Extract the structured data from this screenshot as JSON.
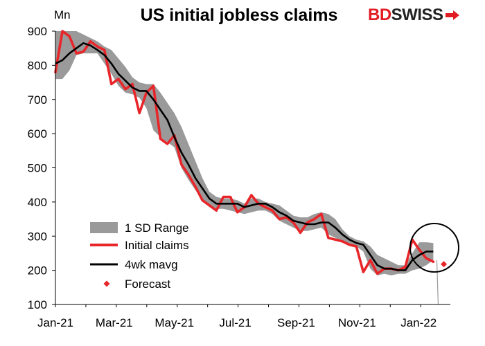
{
  "title": "US initial jobless claims",
  "y_unit": "Mn",
  "logo": {
    "part1": "BD",
    "part2": "SWISS"
  },
  "colors": {
    "range": "#9a9a9a",
    "claims": "#e8262a",
    "mavg": "#000000",
    "forecast": "#e8262a",
    "accent": "#e31b23"
  },
  "chart_data": {
    "type": "line",
    "title": "US initial jobless claims",
    "ylabel": "Mn",
    "xlabel": "",
    "ylim": [
      100,
      900
    ],
    "yticks": [
      100,
      200,
      300,
      400,
      500,
      600,
      700,
      800,
      900
    ],
    "xtick_labels": [
      "Jan-21",
      "Mar-21",
      "May-21",
      "Jul-21",
      "Sep-21",
      "Nov-21",
      "Jan-22"
    ],
    "xtick_weeks": [
      0,
      8.4,
      17,
      25.7,
      34.4,
      43.1,
      51.9
    ],
    "legend": [
      "1 SD Range",
      "Initial claims",
      "4wk mavg",
      "Forecast"
    ],
    "grid": false,
    "series": [
      {
        "name": "Initial claims",
        "values": [
          780,
          900,
          885,
          835,
          840,
          870,
          855,
          845,
          745,
          760,
          730,
          745,
          660,
          720,
          740,
          585,
          570,
          595,
          510,
          480,
          445,
          405,
          390,
          375,
          415,
          415,
          370,
          385,
          420,
          395,
          385,
          375,
          350,
          355,
          340,
          310,
          340,
          350,
          365,
          295,
          290,
          285,
          275,
          270,
          195,
          230,
          190,
          205,
          205,
          200,
          210,
          290,
          260,
          235,
          225
        ]
      },
      {
        "name": "4wk mavg",
        "values": [
          805,
          815,
          835,
          850,
          865,
          858,
          845,
          830,
          805,
          775,
          755,
          735,
          725,
          725,
          700,
          670,
          640,
          590,
          545,
          510,
          470,
          440,
          410,
          395,
          395,
          395,
          395,
          385,
          390,
          395,
          395,
          385,
          370,
          360,
          345,
          340,
          335,
          335,
          340,
          340,
          325,
          305,
          290,
          280,
          275,
          245,
          215,
          205,
          205,
          200,
          200,
          230,
          245,
          255,
          255
        ]
      },
      {
        "name": "1 SD Range",
        "upper": [
          900,
          900,
          900,
          900,
          890,
          880,
          870,
          855,
          845,
          820,
          795,
          765,
          750,
          745,
          745,
          720,
          690,
          660,
          620,
          570,
          520,
          470,
          430,
          415,
          410,
          410,
          405,
          395,
          410,
          410,
          400,
          395,
          390,
          375,
          360,
          355,
          355,
          365,
          370,
          365,
          350,
          320,
          300,
          290,
          285,
          270,
          245,
          235,
          225,
          215,
          215,
          250,
          282,
          282,
          280
        ],
        "lower": [
          760,
          760,
          785,
          830,
          835,
          835,
          835,
          805,
          775,
          740,
          720,
          715,
          705,
          675,
          610,
          590,
          575,
          560,
          500,
          465,
          435,
          405,
          385,
          380,
          380,
          375,
          370,
          365,
          370,
          375,
          375,
          365,
          345,
          335,
          325,
          315,
          315,
          320,
          325,
          305,
          295,
          285,
          275,
          270,
          255,
          205,
          185,
          190,
          185,
          190,
          190,
          200,
          205,
          215,
          230
        ]
      },
      {
        "name": "Forecast",
        "x": [
          55.5
        ],
        "values": [
          218
        ]
      }
    ],
    "range_drop": {
      "x": 54.5,
      "to": 100
    },
    "annotation": "circle around Jan-22 rebound"
  }
}
